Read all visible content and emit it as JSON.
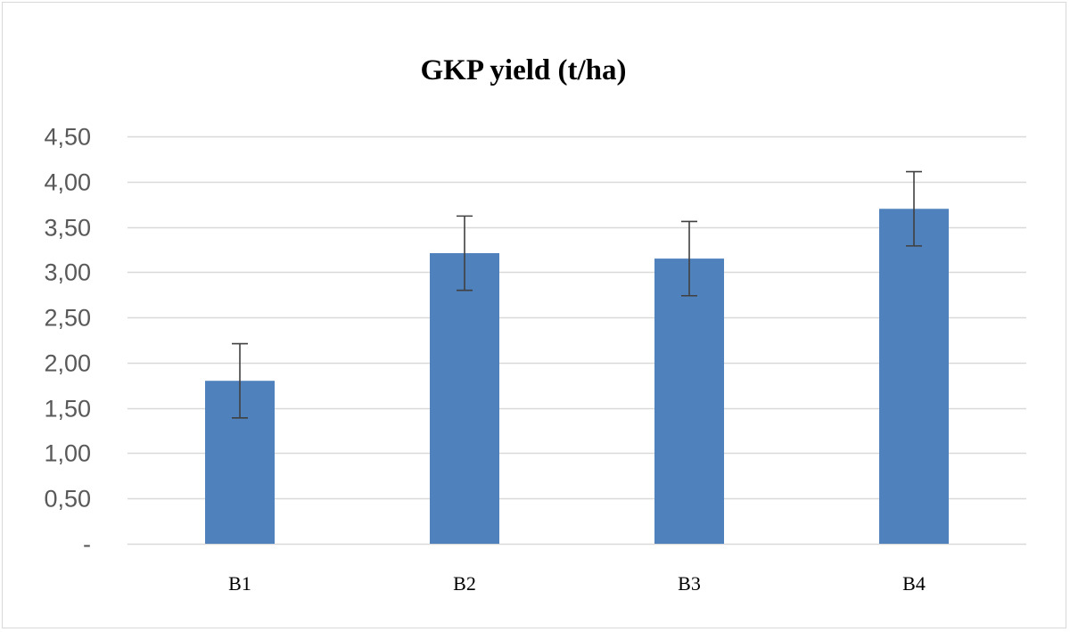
{
  "chart_data": {
    "type": "bar",
    "title": "GKP yield (t/ha)",
    "xlabel": "",
    "ylabel": "",
    "categories": [
      "B1",
      "B2",
      "B3",
      "B4"
    ],
    "values": [
      1.8,
      3.21,
      3.15,
      3.7
    ],
    "error": [
      0.41,
      0.41,
      0.41,
      0.41
    ],
    "ylim": [
      0,
      4.5
    ],
    "yticks": [
      0,
      0.5,
      1,
      1.5,
      2,
      2.5,
      3,
      3.5,
      4,
      4.5
    ],
    "ytick_labels": [
      "-",
      "0,50",
      "1,00",
      "1,50",
      "2,00",
      "2,50",
      "3,00",
      "3,50",
      "4,00",
      "4,50"
    ],
    "grid": true,
    "legend": "none",
    "bar_color": "#4f81bd",
    "error_bar_color": "#404040",
    "grid_color": "#d9d9d9"
  }
}
